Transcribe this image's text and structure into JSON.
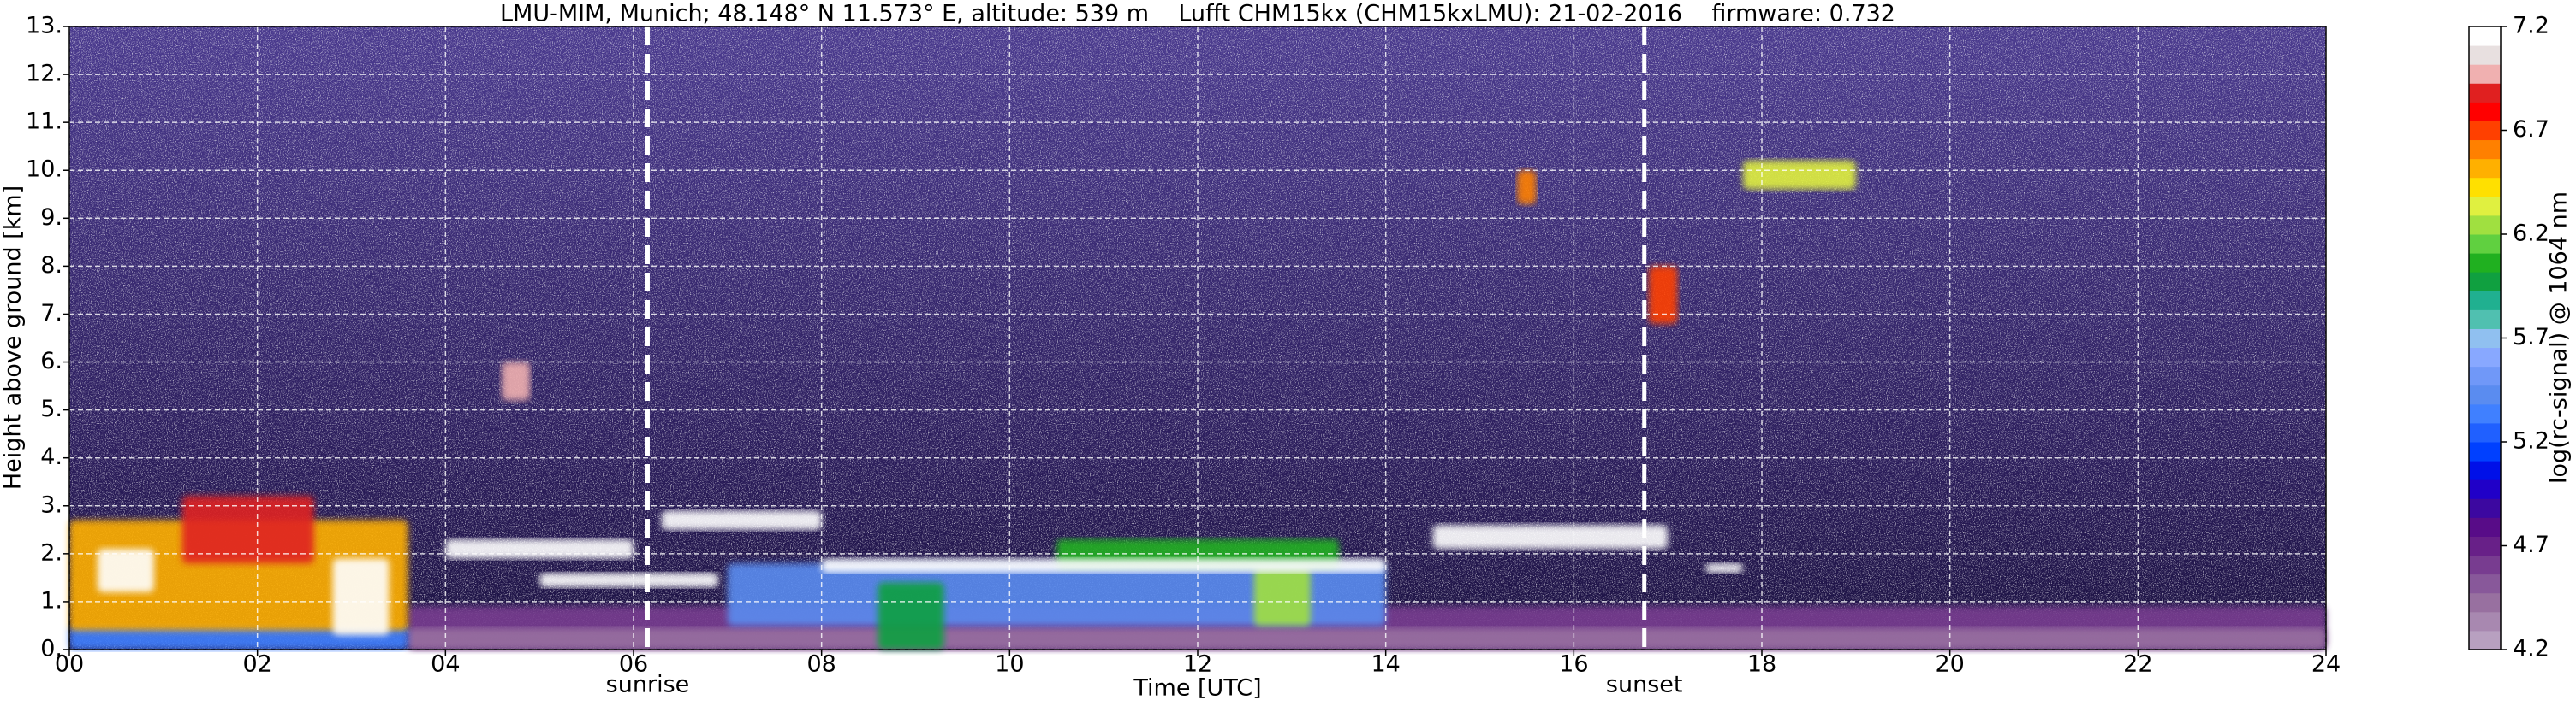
{
  "chart_data": {
    "type": "heatmap",
    "title": "LMU-MIM, Munich; 48.148° N 11.573° E, altitude: 539 m    Lufft CHM15kx (CHM15kxLMU): 21-02-2016    firmware: 0.732",
    "xlabel": "Time [UTC]",
    "ylabel": "Height above ground [km]",
    "colorbar_label": "log(rc-signal) @ 1064 nm",
    "xlim": [
      0,
      24
    ],
    "ylim": [
      0,
      13
    ],
    "xticks": [
      {
        "value": 0,
        "label": "00"
      },
      {
        "value": 2,
        "label": "02"
      },
      {
        "value": 4,
        "label": "04"
      },
      {
        "value": 6,
        "label": "06"
      },
      {
        "value": 8,
        "label": "08"
      },
      {
        "value": 10,
        "label": "10"
      },
      {
        "value": 12,
        "label": "12"
      },
      {
        "value": 14,
        "label": "14"
      },
      {
        "value": 16,
        "label": "16"
      },
      {
        "value": 18,
        "label": "18"
      },
      {
        "value": 20,
        "label": "20"
      },
      {
        "value": 22,
        "label": "22"
      },
      {
        "value": 24,
        "label": "24"
      }
    ],
    "yticks": [
      {
        "value": 0,
        "label": "0."
      },
      {
        "value": 1,
        "label": "1."
      },
      {
        "value": 2,
        "label": "2."
      },
      {
        "value": 3,
        "label": "3."
      },
      {
        "value": 4,
        "label": "4."
      },
      {
        "value": 5,
        "label": "5."
      },
      {
        "value": 6,
        "label": "6."
      },
      {
        "value": 7,
        "label": "7."
      },
      {
        "value": 8,
        "label": "8."
      },
      {
        "value": 9,
        "label": "9."
      },
      {
        "value": 10,
        "label": "10."
      },
      {
        "value": 11,
        "label": "11."
      },
      {
        "value": 12,
        "label": "12."
      },
      {
        "value": 13,
        "label": "13."
      }
    ],
    "grid": true,
    "clim": [
      4.2,
      7.2
    ],
    "cticks": [
      4.2,
      4.7,
      5.2,
      5.7,
      6.2,
      6.7,
      7.2
    ],
    "colorscale": [
      "#b8a0c0",
      "#a888b0",
      "#9870a0",
      "#88589a",
      "#783c90",
      "#682088",
      "#580c88",
      "#3c08a0",
      "#2000c8",
      "#0010e8",
      "#0040ff",
      "#2060ff",
      "#4080ff",
      "#5a8cf0",
      "#7098f8",
      "#88a8ff",
      "#90c0f0",
      "#50c0b0",
      "#20b090",
      "#10a040",
      "#20b020",
      "#60d040",
      "#a0e040",
      "#e0f040",
      "#ffe000",
      "#ffb000",
      "#ff8000",
      "#ff4000",
      "#ff0000",
      "#e02020",
      "#f0b0b0",
      "#e8e0e0",
      "#ffffff"
    ],
    "sun_lines": [
      {
        "x": 6.15,
        "label": "sunrise"
      },
      {
        "x": 16.75,
        "label": "sunset"
      }
    ],
    "regions": [
      {
        "t": [
          3.6,
          24
        ],
        "h": [
          0,
          0.9
        ],
        "value": 4.6
      },
      {
        "t": [
          3.6,
          24
        ],
        "h": [
          0,
          0.45
        ],
        "value": 4.4
      },
      {
        "t": [
          0,
          3.6
        ],
        "h": [
          0,
          0.5
        ],
        "value": 5.3
      },
      {
        "t": [
          0,
          3.6
        ],
        "h": [
          0.4,
          2.7
        ],
        "value": 6.5
      },
      {
        "t": [
          0.3,
          0.9
        ],
        "h": [
          1.2,
          2.1
        ],
        "value": 7.2
      },
      {
        "t": [
          1.2,
          2.6
        ],
        "h": [
          1.8,
          3.2
        ],
        "value": 6.9
      },
      {
        "t": [
          2.8,
          3.4
        ],
        "h": [
          0.3,
          1.9
        ],
        "value": 7.2
      },
      {
        "t": [
          7.0,
          14.0
        ],
        "h": [
          0.5,
          1.8
        ],
        "value": 5.4
      },
      {
        "t": [
          10.5,
          13.5
        ],
        "h": [
          1.7,
          2.3
        ],
        "value": 6.1
      },
      {
        "t": [
          8.6,
          9.3
        ],
        "h": [
          0,
          1.4
        ],
        "value": 6.0
      },
      {
        "t": [
          12.6,
          13.2
        ],
        "h": [
          0.5,
          1.7
        ],
        "value": 6.2
      },
      {
        "t": [
          4.0,
          6.0
        ],
        "h": [
          1.9,
          2.3
        ],
        "value": 7.2
      },
      {
        "t": [
          5.0,
          6.9
        ],
        "h": [
          1.3,
          1.6
        ],
        "value": 7.2
      },
      {
        "t": [
          6.3,
          8.0
        ],
        "h": [
          2.5,
          2.9
        ],
        "value": 7.2
      },
      {
        "t": [
          8.0,
          14.0
        ],
        "h": [
          1.6,
          1.9
        ],
        "value": 7.2
      },
      {
        "t": [
          14.5,
          17.0
        ],
        "h": [
          2.1,
          2.6
        ],
        "value": 7.2
      },
      {
        "t": [
          17.4,
          17.8
        ],
        "h": [
          1.6,
          1.8
        ],
        "value": 7.2
      },
      {
        "t": [
          4.6,
          4.9
        ],
        "h": [
          5.2,
          6.0
        ],
        "value": 7.0
      },
      {
        "t": [
          15.4,
          15.6
        ],
        "h": [
          9.3,
          10.0
        ],
        "value": 6.6
      },
      {
        "t": [
          16.8,
          17.1
        ],
        "h": [
          6.8,
          8.0
        ],
        "value": 6.7
      },
      {
        "t": [
          17.8,
          19.0
        ],
        "h": [
          9.6,
          10.2
        ],
        "value": 6.3
      }
    ]
  }
}
